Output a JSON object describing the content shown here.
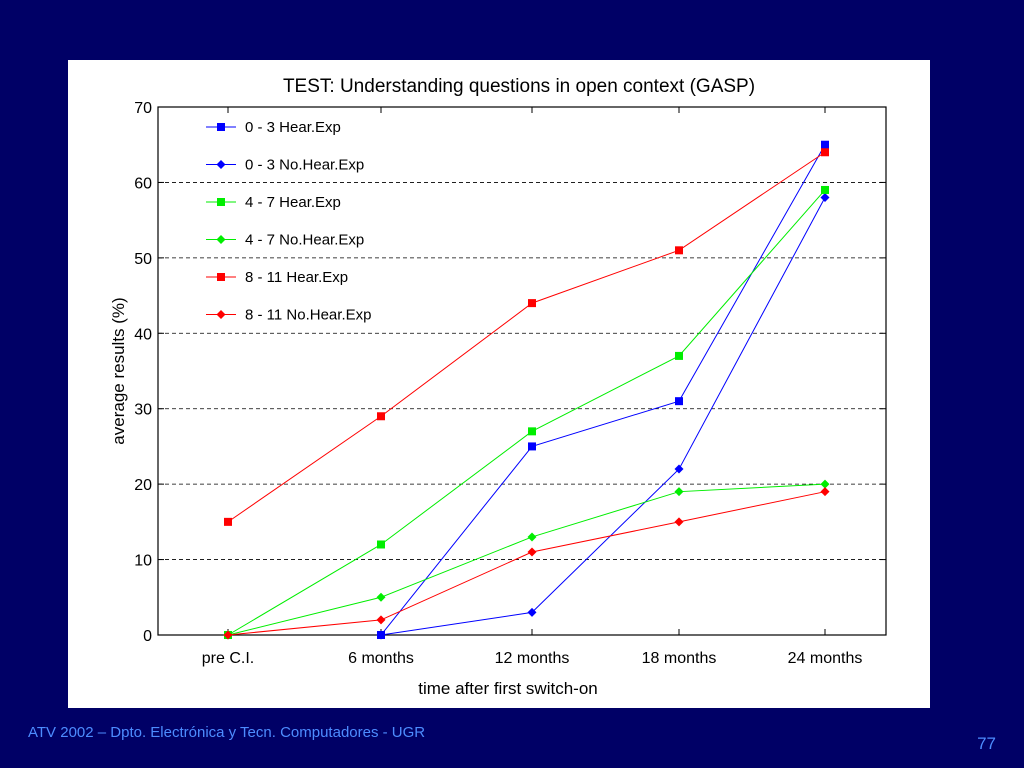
{
  "slide": {
    "footer": "ATV 2002 – Dpto. Electrónica y Tecn. Computadores - UGR",
    "page_number": "77"
  },
  "chart_data": {
    "type": "line",
    "title": "TEST: Understanding questions in open context (GASP)",
    "xlabel": "time after first switch-on",
    "ylabel": "average results (%)",
    "categories": [
      "pre C.I.",
      "6 months",
      "12 months",
      "18 months",
      "24 months"
    ],
    "ylim": [
      0,
      70
    ],
    "yticks": [
      0,
      10,
      20,
      30,
      40,
      50,
      60,
      70
    ],
    "grid": "horizontal dashed",
    "legend_position": "top-left",
    "series": [
      {
        "name": "0 - 3 Hear.Exp",
        "color": "#0000ff",
        "marker": "square",
        "values": [
          null,
          0,
          25,
          31,
          65
        ]
      },
      {
        "name": "0 - 3 No.Hear.Exp",
        "color": "#0000ff",
        "marker": "diamond",
        "values": [
          null,
          0,
          3,
          22,
          58
        ]
      },
      {
        "name": "4 - 7 Hear.Exp",
        "color": "#00ee00",
        "marker": "square",
        "values": [
          0,
          12,
          27,
          37,
          59
        ]
      },
      {
        "name": "4 - 7 No.Hear.Exp",
        "color": "#00ee00",
        "marker": "diamond",
        "values": [
          0,
          5,
          13,
          19,
          20
        ]
      },
      {
        "name": "8 - 11 Hear.Exp",
        "color": "#ff0000",
        "marker": "square",
        "values": [
          15,
          29,
          44,
          51,
          64
        ]
      },
      {
        "name": "8 - 11 No.Hear.Exp",
        "color": "#ff0000",
        "marker": "diamond",
        "values": [
          0,
          2,
          11,
          15,
          19
        ]
      }
    ]
  }
}
